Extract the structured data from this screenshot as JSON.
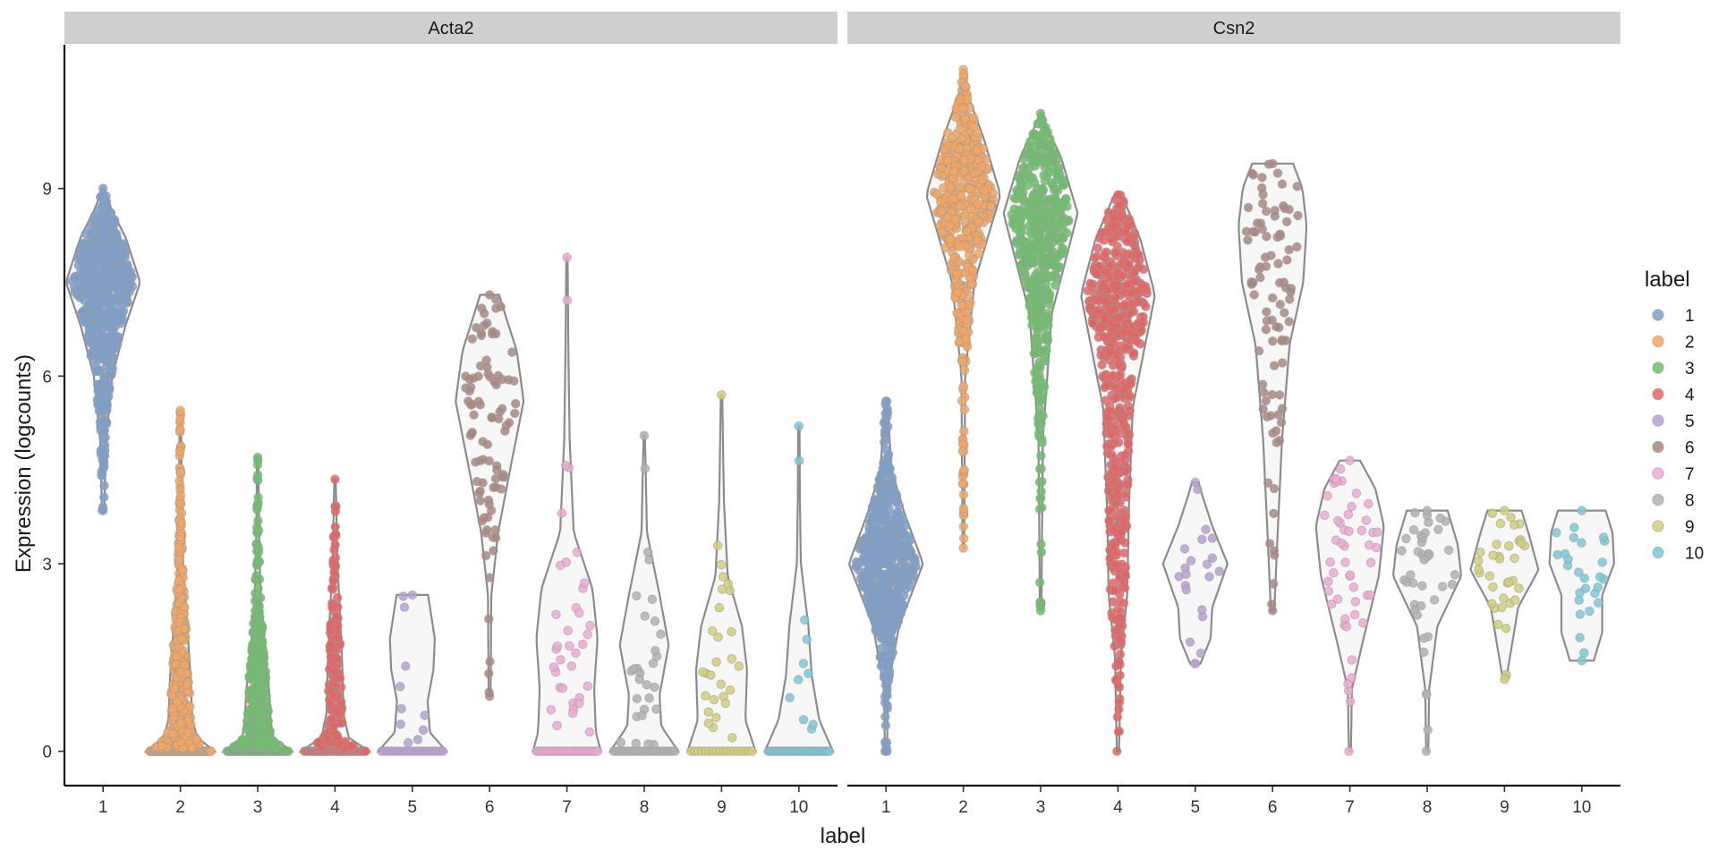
{
  "chart_data": {
    "type": "violin",
    "facet_by": "gene",
    "xlabel": "label",
    "ylabel": "Expression (logcounts)",
    "ylim": [
      -0.55,
      11.3
    ],
    "yticks": [
      0,
      3,
      6,
      9
    ],
    "categories": [
      "1",
      "2",
      "3",
      "4",
      "5",
      "6",
      "7",
      "8",
      "9",
      "10"
    ],
    "legend": {
      "title": "label",
      "position": "right",
      "entries": [
        "1",
        "2",
        "3",
        "4",
        "5",
        "6",
        "7",
        "8",
        "9",
        "10"
      ]
    },
    "colors": {
      "1": "#7b9fcc",
      "2": "#f5a660",
      "3": "#6cbf6a",
      "4": "#e46461",
      "5": "#b59fd3",
      "6": "#a98780",
      "7": "#f1a6d3",
      "8": "#b0b0b0",
      "9": "#d0cf75",
      "10": "#78c9d9"
    },
    "facets": [
      {
        "name": "Acta2",
        "groups": [
          {
            "label": "1",
            "n": 600,
            "min": 3.85,
            "max": 9.0,
            "median": 7.45,
            "q1": 6.9,
            "q3": 7.85,
            "zero_n": 0,
            "max_half_width": 0.48,
            "density": [
              [
                3.85,
                0.03
              ],
              [
                5,
                0.08
              ],
              [
                6,
                0.25
              ],
              [
                6.8,
                0.6
              ],
              [
                7.5,
                1
              ],
              [
                8.2,
                0.62
              ],
              [
                8.7,
                0.2
              ],
              [
                9,
                0.03
              ]
            ]
          },
          {
            "label": "2",
            "n": 500,
            "min": 0,
            "max": 5.45,
            "median": 1.3,
            "q1": 0.8,
            "q3": 1.8,
            "zero_n": 70,
            "max_half_width": 0.44,
            "density": [
              [
                0,
                1
              ],
              [
                0.22,
                0.5
              ],
              [
                0.5,
                0.35
              ],
              [
                1.2,
                0.3
              ],
              [
                2,
                0.2
              ],
              [
                3,
                0.08
              ],
              [
                4,
                0.04
              ],
              [
                5.45,
                0.02
              ]
            ]
          },
          {
            "label": "3",
            "n": 380,
            "min": 0,
            "max": 4.7,
            "median": 0.95,
            "q1": 0.6,
            "q3": 1.5,
            "zero_n": 60,
            "max_half_width": 0.44,
            "density": [
              [
                0,
                1
              ],
              [
                0.22,
                0.45
              ],
              [
                0.5,
                0.38
              ],
              [
                1,
                0.33
              ],
              [
                1.8,
                0.18
              ],
              [
                2.6,
                0.08
              ],
              [
                3.5,
                0.04
              ],
              [
                4.7,
                0.02
              ]
            ]
          },
          {
            "label": "4",
            "n": 240,
            "min": 0,
            "max": 4.35,
            "median": 1.0,
            "q1": 0.5,
            "q3": 1.8,
            "zero_n": 60,
            "max_half_width": 0.44,
            "density": [
              [
                0,
                1
              ],
              [
                0.22,
                0.4
              ],
              [
                0.6,
                0.25
              ],
              [
                1.3,
                0.22
              ],
              [
                2.2,
                0.15
              ],
              [
                3,
                0.07
              ],
              [
                4.35,
                0.02
              ]
            ]
          },
          {
            "label": "5",
            "n": 30,
            "min": 0,
            "max": 2.5,
            "median": 0.0,
            "q1": 0.0,
            "q3": 1.7,
            "zero_n": 20,
            "max_half_width": 0.44,
            "density": [
              [
                0,
                1
              ],
              [
                0.3,
                0.52
              ],
              [
                0.8,
                0.45
              ],
              [
                1.3,
                0.62
              ],
              [
                1.8,
                0.66
              ],
              [
                2.3,
                0.52
              ],
              [
                2.5,
                0.46
              ]
            ]
          },
          {
            "label": "6",
            "n": 90,
            "min": 0.88,
            "max": 7.3,
            "median": 5.5,
            "q1": 4.7,
            "q3": 6.0,
            "zero_n": 0,
            "max_half_width": 0.44,
            "density": [
              [
                0.88,
                0.03
              ],
              [
                2.5,
                0.05
              ],
              [
                3.5,
                0.25
              ],
              [
                4.5,
                0.6
              ],
              [
                5.6,
                1
              ],
              [
                6.4,
                0.8
              ],
              [
                7,
                0.45
              ],
              [
                7.3,
                0.28
              ]
            ]
          },
          {
            "label": "7",
            "n": 60,
            "min": 0,
            "max": 7.9,
            "median": 1.8,
            "q1": 0.0,
            "q3": 2.3,
            "zero_n": 25,
            "max_half_width": 0.44,
            "density": [
              [
                0,
                1
              ],
              [
                0.3,
                0.85
              ],
              [
                1,
                0.8
              ],
              [
                1.8,
                0.9
              ],
              [
                2.6,
                0.75
              ],
              [
                3.5,
                0.2
              ],
              [
                5,
                0.08
              ],
              [
                6.5,
                0.04
              ],
              [
                7.9,
                0.02
              ]
            ]
          },
          {
            "label": "8",
            "n": 50,
            "min": 0,
            "max": 5.05,
            "median": 1.2,
            "q1": 0.0,
            "q3": 1.8,
            "zero_n": 22,
            "max_half_width": 0.44,
            "density": [
              [
                0,
                1
              ],
              [
                0.4,
                0.5
              ],
              [
                0.9,
                0.45
              ],
              [
                1.7,
                0.72
              ],
              [
                2.5,
                0.45
              ],
              [
                3.5,
                0.08
              ],
              [
                5.05,
                0.02
              ]
            ]
          },
          {
            "label": "9",
            "n": 45,
            "min": 0,
            "max": 5.7,
            "median": 1.2,
            "q1": 0.0,
            "q3": 1.6,
            "zero_n": 18,
            "max_half_width": 0.44,
            "density": [
              [
                0,
                1
              ],
              [
                0.5,
                0.7
              ],
              [
                1.3,
                0.75
              ],
              [
                2,
                0.6
              ],
              [
                2.8,
                0.18
              ],
              [
                4,
                0.07
              ],
              [
                5.7,
                0.02
              ]
            ]
          },
          {
            "label": "10",
            "n": 40,
            "min": 0,
            "max": 5.2,
            "median": 0.0,
            "q1": 0.0,
            "q3": 1.5,
            "zero_n": 30,
            "max_half_width": 0.44,
            "density": [
              [
                0,
                1
              ],
              [
                0.5,
                0.6
              ],
              [
                1.2,
                0.38
              ],
              [
                2,
                0.28
              ],
              [
                3,
                0.06
              ],
              [
                4,
                0.03
              ],
              [
                5.2,
                0.02
              ]
            ]
          }
        ]
      },
      {
        "name": "Csn2",
        "groups": [
          {
            "label": "1",
            "n": 600,
            "min": 0,
            "max": 5.6,
            "median": 3.0,
            "q1": 2.5,
            "q3": 3.4,
            "zero_n": 3,
            "max_half_width": 0.48,
            "density": [
              [
                0,
                0.03
              ],
              [
                1,
                0.05
              ],
              [
                2,
                0.35
              ],
              [
                3,
                1
              ],
              [
                3.8,
                0.5
              ],
              [
                4.5,
                0.15
              ],
              [
                5.6,
                0.03
              ]
            ]
          },
          {
            "label": "2",
            "n": 500,
            "min": 3.25,
            "max": 10.9,
            "median": 8.9,
            "q1": 8.4,
            "q3": 9.4,
            "zero_n": 0,
            "max_half_width": 0.48,
            "density": [
              [
                3.25,
                0.02
              ],
              [
                6,
                0.05
              ],
              [
                7.5,
                0.3
              ],
              [
                8.9,
                1
              ],
              [
                9.8,
                0.55
              ],
              [
                10.5,
                0.12
              ],
              [
                10.9,
                0.03
              ]
            ]
          },
          {
            "label": "3",
            "n": 500,
            "min": 2.25,
            "max": 10.2,
            "median": 8.6,
            "q1": 7.9,
            "q3": 9.1,
            "zero_n": 0,
            "max_half_width": 0.48,
            "density": [
              [
                2.25,
                0.02
              ],
              [
                5,
                0.06
              ],
              [
                7,
                0.3
              ],
              [
                8.6,
                1
              ],
              [
                9.5,
                0.55
              ],
              [
                10,
                0.15
              ],
              [
                10.2,
                0.03
              ]
            ]
          },
          {
            "label": "4",
            "n": 600,
            "min": 0,
            "max": 8.9,
            "median": 6.5,
            "q1": 4.0,
            "q3": 7.6,
            "zero_n": 1,
            "max_half_width": 0.48,
            "density": [
              [
                0,
                0.03
              ],
              [
                1.5,
                0.08
              ],
              [
                2.5,
                0.25
              ],
              [
                4,
                0.3
              ],
              [
                5.5,
                0.4
              ],
              [
                7.3,
                1
              ],
              [
                8.2,
                0.6
              ],
              [
                8.9,
                0.1
              ]
            ]
          },
          {
            "label": "5",
            "n": 20,
            "min": 1.4,
            "max": 4.3,
            "median": 2.7,
            "q1": 2.2,
            "q3": 3.1,
            "zero_n": 0,
            "max_half_width": 0.44,
            "density": [
              [
                1.4,
                0.15
              ],
              [
                1.8,
                0.45
              ],
              [
                2.3,
                0.5
              ],
              [
                3,
                0.95
              ],
              [
                3.6,
                0.5
              ],
              [
                4.1,
                0.2
              ],
              [
                4.3,
                0.1
              ]
            ]
          },
          {
            "label": "6",
            "n": 90,
            "min": 2.25,
            "max": 9.4,
            "median": 7.6,
            "q1": 6.0,
            "q3": 8.3,
            "zero_n": 0,
            "max_half_width": 0.44,
            "density": [
              [
                2.25,
                0.05
              ],
              [
                3.5,
                0.15
              ],
              [
                5,
                0.28
              ],
              [
                6.5,
                0.5
              ],
              [
                7.5,
                0.9
              ],
              [
                8.4,
                1
              ],
              [
                9,
                0.88
              ],
              [
                9.4,
                0.6
              ]
            ]
          },
          {
            "label": "7",
            "n": 50,
            "min": 0,
            "max": 4.65,
            "median": 3.3,
            "q1": 2.6,
            "q3": 3.8,
            "zero_n": 1,
            "max_half_width": 0.44,
            "density": [
              [
                0,
                0.03
              ],
              [
                1,
                0.06
              ],
              [
                1.8,
                0.4
              ],
              [
                2.8,
                0.85
              ],
              [
                3.6,
                1
              ],
              [
                4.2,
                0.75
              ],
              [
                4.65,
                0.3
              ]
            ]
          },
          {
            "label": "8",
            "n": 40,
            "min": 0,
            "max": 3.85,
            "median": 3.0,
            "q1": 2.6,
            "q3": 3.3,
            "zero_n": 1,
            "max_half_width": 0.44,
            "density": [
              [
                0,
                0.03
              ],
              [
                1,
                0.06
              ],
              [
                2,
                0.3
              ],
              [
                2.8,
                1
              ],
              [
                3.3,
                0.9
              ],
              [
                3.85,
                0.6
              ]
            ]
          },
          {
            "label": "9",
            "n": 35,
            "min": 1.15,
            "max": 3.85,
            "median": 2.8,
            "q1": 2.4,
            "q3": 3.1,
            "zero_n": 0,
            "max_half_width": 0.44,
            "density": [
              [
                1.15,
                0.05
              ],
              [
                1.8,
                0.25
              ],
              [
                2.3,
                0.4
              ],
              [
                2.9,
                1
              ],
              [
                3.5,
                0.7
              ],
              [
                3.85,
                0.5
              ]
            ]
          },
          {
            "label": "10",
            "n": 25,
            "min": 1.45,
            "max": 3.85,
            "median": 2.7,
            "q1": 2.2,
            "q3": 3.2,
            "zero_n": 0,
            "max_half_width": 0.44,
            "density": [
              [
                1.45,
                0.35
              ],
              [
                1.9,
                0.6
              ],
              [
                2.5,
                0.6
              ],
              [
                3,
                0.95
              ],
              [
                3.5,
                0.9
              ],
              [
                3.85,
                0.7
              ]
            ]
          }
        ]
      }
    ]
  }
}
